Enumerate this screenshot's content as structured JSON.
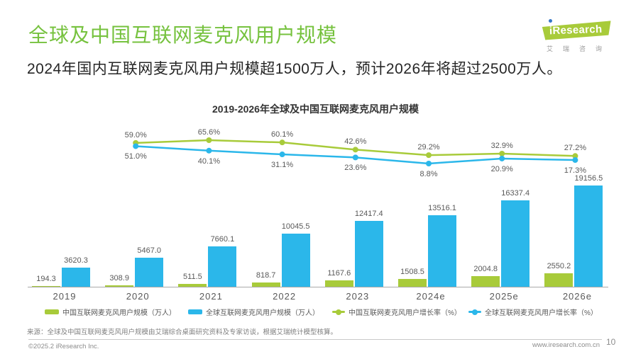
{
  "header": {
    "title": "全球及中国互联网麦克风用户规模",
    "subtitle": "2024年国内互联网麦克风用户规模超1500万人，预计2026年将超过2500万人。",
    "logo": {
      "brand": "iResearch",
      "brand_cn": "艾瑞咨询"
    }
  },
  "chart_data": {
    "type": "combo-bar-line",
    "title": "2019-2026年全球及中国互联网麦克风用户规模",
    "categories": [
      "2019",
      "2020",
      "2021",
      "2022",
      "2023",
      "2024e",
      "2025e",
      "2026e"
    ],
    "series": [
      {
        "name": "中国互联网麦克风用户规模（万人）",
        "type": "bar",
        "color": "#a8cb3a",
        "values": [
          194.3,
          308.9,
          511.5,
          818.7,
          1167.6,
          1508.5,
          2004.8,
          2550.2
        ]
      },
      {
        "name": "全球互联网麦克风用户规模（万人）",
        "type": "bar",
        "color": "#2bb7ea",
        "values": [
          3620.3,
          5467.0,
          7660.1,
          10045.5,
          12417.4,
          13516.1,
          16337.4,
          19156.5
        ]
      },
      {
        "name": "中国互联网麦克风用户增长率（%）",
        "type": "line",
        "color": "#a8cb3a",
        "categories": [
          "2020",
          "2021",
          "2022",
          "2023",
          "2024e",
          "2025e",
          "2026e"
        ],
        "values": [
          59.0,
          65.6,
          60.1,
          42.6,
          29.2,
          32.9,
          27.2
        ]
      },
      {
        "name": "全球互联网麦克风用户增长率（%）",
        "type": "line",
        "color": "#2bb7ea",
        "categories": [
          "2020",
          "2021",
          "2022",
          "2023",
          "2024e",
          "2025e",
          "2026e"
        ],
        "values": [
          51.0,
          40.1,
          31.1,
          23.6,
          8.8,
          20.9,
          17.3
        ]
      }
    ],
    "legend_position": "bottom",
    "grid": false,
    "bar_unit": "万人",
    "line_unit": "%"
  },
  "footer": {
    "source": "来源：全球及中国互联网麦克风用户规模由艾瑞综合桌面研究资料及专家访谈，根据艾瑞统计模型核算。",
    "copyright": "©2025.2 iResearch Inc.",
    "website": "www.iresearch.com.cn",
    "page_number": "10"
  }
}
